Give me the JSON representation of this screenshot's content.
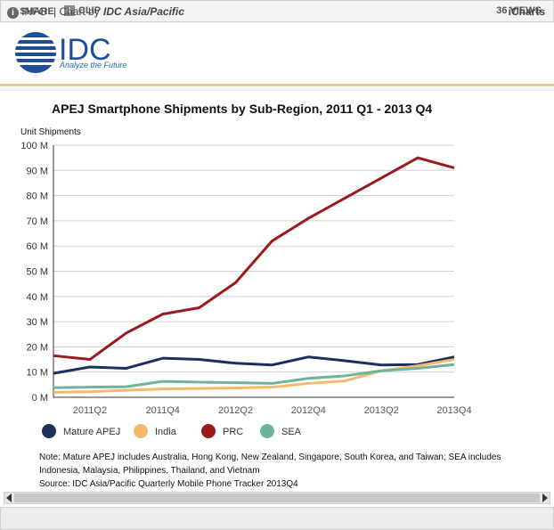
{
  "header": {
    "share": "SHARE",
    "clip": "CLIP",
    "views": "36 VIEWS"
  },
  "logo": {
    "name": "IDC",
    "tagline": "Analyze the Future"
  },
  "chart_data": {
    "type": "line",
    "title": "APEJ Smartphone Shipments by Sub-Region, 2011 Q1 - 2013 Q4",
    "y_label": "Unit Shipments",
    "categories": [
      null,
      "2011Q2",
      null,
      "2011Q4",
      null,
      "2012Q2",
      null,
      "2012Q4",
      null,
      "2013Q2",
      null,
      "2013Q4"
    ],
    "series": [
      {
        "name": "Mature APEJ",
        "color": "#1d2f5f",
        "values": [
          9.5,
          12,
          11.5,
          15.5,
          15,
          13.5,
          12.8,
          16,
          14.5,
          12.8,
          13,
          16
        ]
      },
      {
        "name": "India",
        "color": "#f5b96c",
        "values": [
          2,
          2.2,
          2.8,
          3.3,
          3.5,
          3.7,
          4,
          5.5,
          6.5,
          10.5,
          12.5,
          15
        ]
      },
      {
        "name": "PRC",
        "color": "#9b1a1e",
        "values": [
          16.5,
          15,
          25.5,
          33,
          35.5,
          45.5,
          62,
          71,
          79,
          87,
          95,
          91
        ]
      },
      {
        "name": "SEA",
        "color": "#6fb39c",
        "values": [
          3.8,
          4,
          4.2,
          6.3,
          6,
          5.8,
          5.5,
          7.5,
          8.5,
          10.5,
          11.5,
          13
        ]
      }
    ],
    "ylim": [
      0,
      100
    ],
    "yticks": [
      {
        "value": 0,
        "label": "0 M"
      },
      {
        "value": 10,
        "label": "10 M"
      },
      {
        "value": 20,
        "label": "20 M"
      },
      {
        "value": 30,
        "label": "30 M"
      },
      {
        "value": 40,
        "label": "40 M"
      },
      {
        "value": 50,
        "label": "50 M"
      },
      {
        "value": 60,
        "label": "60 M"
      },
      {
        "value": 70,
        "label": "70 M"
      },
      {
        "value": 80,
        "label": "80 M"
      },
      {
        "value": 90,
        "label": "90 M"
      },
      {
        "value": 100,
        "label": "100 M"
      }
    ],
    "grid": true,
    "notes": [
      "Note: Mature APEJ includes Australia, Hong Kong, New Zealand, Singapore, South Korea, and Taiwan; SEA includes Indonesia, Malaysia, Philippines, Thailand, and Vietnam",
      "Source: IDC Asia/Pacific Quarterly Mobile Phone Tracker 2013Q4"
    ]
  },
  "footer": {
    "info": "INFO",
    "chart_by": "| Chart by",
    "brand": "IDC Asia/Pacific",
    "icharts": "iCharts"
  }
}
